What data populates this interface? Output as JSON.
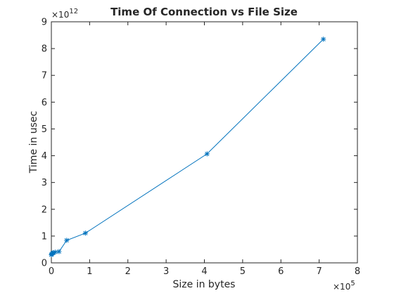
{
  "chart_data": {
    "type": "line",
    "title": "Time Of Connection vs File Size",
    "xlabel": "Size in bytes",
    "ylabel": "Time in usec",
    "xlim": [
      0,
      8
    ],
    "ylim": [
      0,
      9
    ],
    "x_multiplier": {
      "base": "×10",
      "exponent": "5"
    },
    "y_multiplier": {
      "base": "×10",
      "exponent": "12"
    },
    "x_ticks": [
      "0",
      "1",
      "2",
      "3",
      "4",
      "5",
      "6",
      "7",
      "8"
    ],
    "y_ticks": [
      "0",
      "1",
      "2",
      "3",
      "4",
      "5",
      "6",
      "7",
      "8",
      "9"
    ],
    "grid": false,
    "marker": "*",
    "line_color": "#0072bd",
    "series": [
      {
        "x": [
          0.0,
          0.01,
          0.03,
          0.05,
          0.1,
          0.2,
          0.4,
          0.89,
          4.07,
          7.11
        ],
        "y": [
          0.3,
          0.33,
          0.36,
          0.38,
          0.4,
          0.42,
          0.84,
          1.11,
          4.07,
          8.35
        ]
      }
    ]
  }
}
